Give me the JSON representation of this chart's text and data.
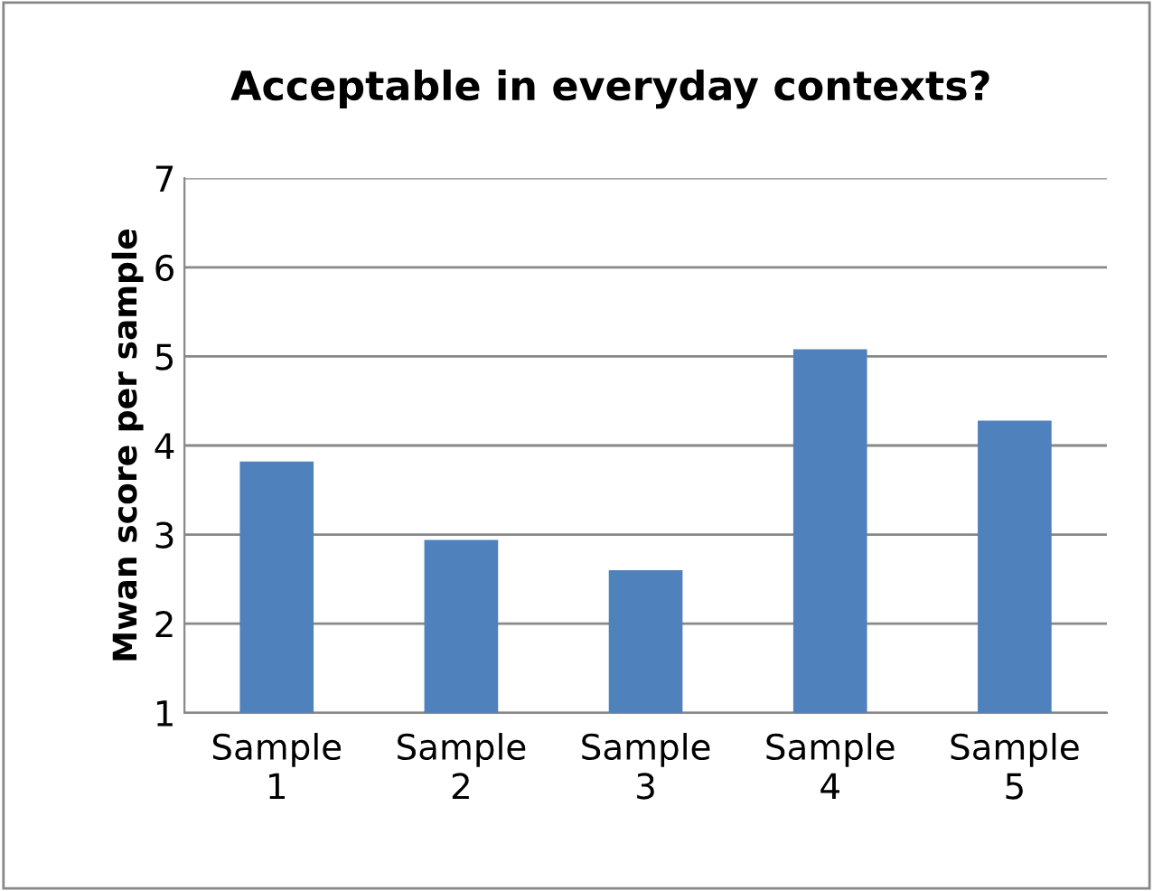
{
  "chart_data": {
    "type": "bar",
    "title": "Acceptable in everyday contexts?",
    "ylabel": "Mwan score per sample",
    "categories": [
      "Sample\n1",
      "Sample\n2",
      "Sample\n3",
      "Sample\n4",
      "Sample\n5"
    ],
    "values": [
      3.82,
      2.94,
      2.6,
      5.08,
      4.28
    ],
    "color": "#4f81bd",
    "ylim": [
      1,
      7
    ],
    "yticks": [
      1,
      2,
      3,
      4,
      5,
      6,
      7
    ],
    "grid": "y",
    "legend": false
  }
}
